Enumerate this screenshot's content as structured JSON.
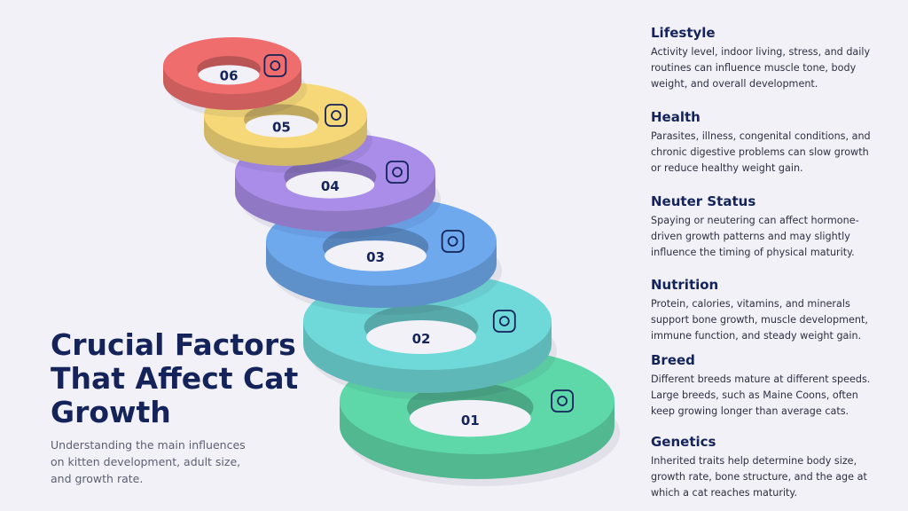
{
  "title": "Crucial Factors That Affect Cat Growth",
  "subtitle": "Understanding the main influences on kitten development, adult size, and growth rate.",
  "rings": [
    {
      "label": "01",
      "color": "#5fd8a9"
    },
    {
      "label": "02",
      "color": "#6fd9d9"
    },
    {
      "label": "03",
      "color": "#6ea9ee"
    },
    {
      "label": "04",
      "color": "#a98de8"
    },
    {
      "label": "05",
      "color": "#f6d878"
    },
    {
      "label": "06",
      "color": "#ef6d6d"
    }
  ],
  "factors": [
    {
      "title": "Lifestyle",
      "text": "Activity level, indoor living, stress, and daily routines can influence muscle tone, body weight, and overall development."
    },
    {
      "title": "Health",
      "text": "Parasites, illness, congenital conditions, and chronic digestive problems can slow growth or reduce healthy weight gain."
    },
    {
      "title": "Neuter Status",
      "text": "Spaying or neutering can affect hormone-driven growth patterns and may slightly influence the timing of physical maturity."
    },
    {
      "title": "Nutrition",
      "text": "Protein, calories, vitamins, and minerals support bone growth, muscle development, immune function, and steady weight gain."
    },
    {
      "title": "Breed",
      "text": "Different breeds mature at different speeds. Large breeds, such as Maine Coons, often keep growing longer than average cats."
    },
    {
      "title": "Genetics",
      "text": "Inherited traits help determine body size, growth rate, bone structure, and the age at which a cat reaches maturity."
    }
  ]
}
